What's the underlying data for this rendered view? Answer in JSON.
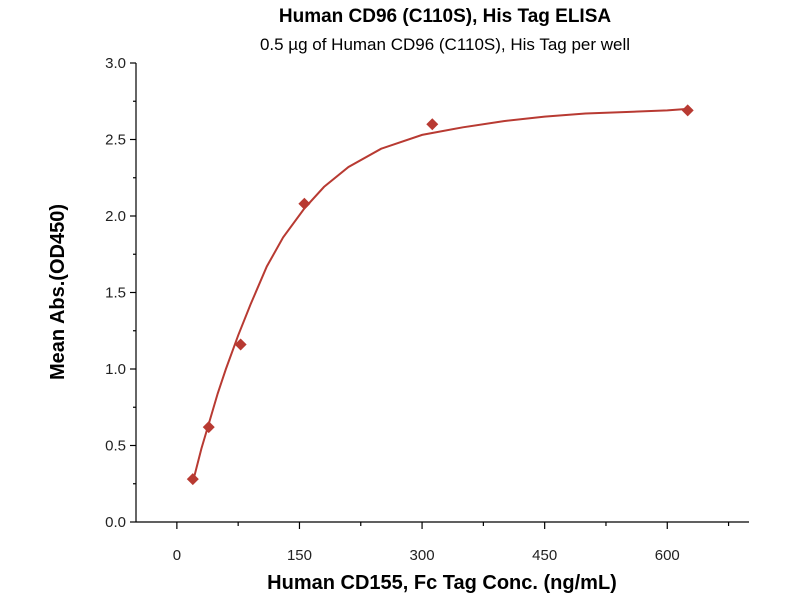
{
  "chart_data": {
    "type": "scatter",
    "title": "Human CD96 (C110S), His Tag ELISA",
    "subtitle": "0.5 µg of Human CD96 (C110S), His Tag per well",
    "xlabel": "Human CD155, Fc Tag Conc. (ng/mL)",
    "ylabel": "Mean Abs.(OD450)",
    "xlim": [
      -50,
      700
    ],
    "ylim": [
      0,
      3.0
    ],
    "xticks": [
      "0",
      "150",
      "300",
      "450",
      "600"
    ],
    "yticks": [
      "0.0",
      "0.5",
      "1.0",
      "1.5",
      "2.0",
      "2.5",
      "3.0"
    ],
    "grid": false,
    "colors": {
      "series": "#b83a32"
    },
    "series": [
      {
        "x": [
          19.5,
          39,
          78,
          156,
          312.5,
          625
        ],
        "y": [
          0.28,
          0.62,
          1.16,
          2.08,
          2.6,
          2.69
        ]
      }
    ],
    "fit_curve": {
      "x": [
        19.5,
        30,
        40,
        50,
        60,
        75,
        90,
        110,
        130,
        156,
        180,
        210,
        250,
        300,
        350,
        400,
        450,
        500,
        550,
        600,
        625
      ],
      "y": [
        0.26,
        0.48,
        0.66,
        0.84,
        1.0,
        1.22,
        1.42,
        1.67,
        1.86,
        2.05,
        2.19,
        2.32,
        2.44,
        2.53,
        2.58,
        2.62,
        2.65,
        2.67,
        2.68,
        2.69,
        2.7
      ]
    }
  }
}
